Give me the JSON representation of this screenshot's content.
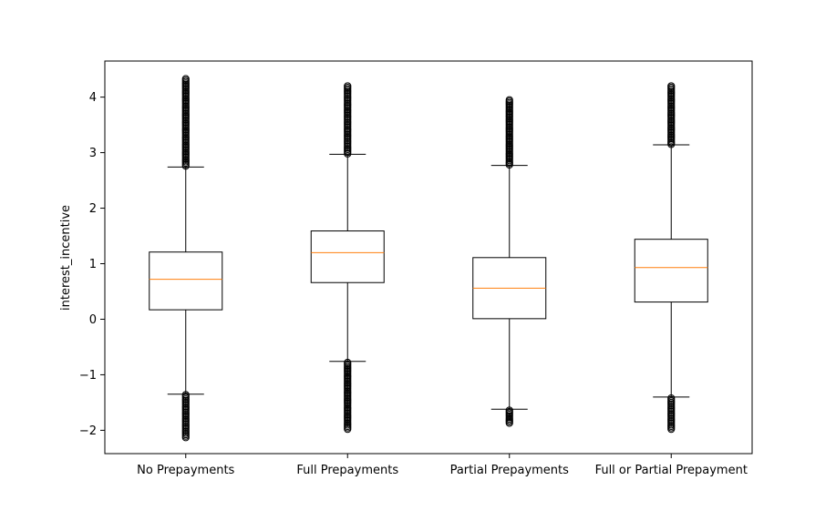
{
  "chart_data": {
    "type": "boxplot",
    "title": "",
    "xlabel": "",
    "ylabel": "interest_incentive",
    "ylim": [
      -2.42,
      4.65
    ],
    "yticks": [
      -2,
      -1,
      0,
      1,
      2,
      3,
      4
    ],
    "ytick_labels": [
      "−2",
      "−1",
      "0",
      "1",
      "2",
      "3",
      "4"
    ],
    "grid": false,
    "colors": {
      "box": "#000000",
      "median": "#ff7f0e",
      "outlier": "#000000"
    },
    "categories": [
      "No Prepayments",
      "Full Prepayments",
      "Partial Prepayments",
      "Full or Partial Prepayment"
    ],
    "boxes": [
      {
        "whisker_low": -1.35,
        "q1": 0.17,
        "median": 0.72,
        "q3": 1.21,
        "whisker_high": 2.74,
        "outlier_high": [
          2.76,
          4.33
        ],
        "outlier_low": [
          -2.13,
          -1.36
        ]
      },
      {
        "whisker_low": -0.76,
        "q1": 0.66,
        "median": 1.2,
        "q3": 1.59,
        "whisker_high": 2.97,
        "outlier_high": [
          2.98,
          4.2
        ],
        "outlier_low": [
          -1.98,
          -0.78
        ]
      },
      {
        "whisker_low": -1.62,
        "q1": 0.01,
        "median": 0.56,
        "q3": 1.11,
        "whisker_high": 2.77,
        "outlier_high": [
          2.78,
          3.95
        ],
        "outlier_low": [
          -1.87,
          -1.64
        ]
      },
      {
        "whisker_low": -1.4,
        "q1": 0.31,
        "median": 0.93,
        "q3": 1.44,
        "whisker_high": 3.14,
        "outlier_high": [
          3.15,
          4.2
        ],
        "outlier_low": [
          -1.98,
          -1.42
        ]
      }
    ]
  }
}
